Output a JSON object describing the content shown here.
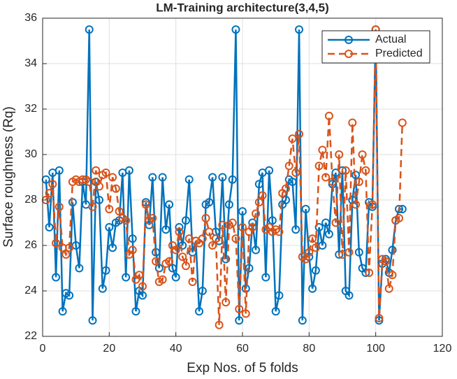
{
  "chart_data": {
    "type": "line",
    "title": "LM-Training architecture(3,4,5)",
    "x_label": "Exp Nos. of 5 folds",
    "y_label": "Surface roughness (Rq)",
    "x": [
      1,
      2,
      3,
      4,
      5,
      6,
      7,
      8,
      9,
      10,
      11,
      12,
      13,
      14,
      15,
      16,
      17,
      18,
      19,
      20,
      21,
      22,
      23,
      24,
      25,
      26,
      27,
      28,
      29,
      30,
      31,
      32,
      33,
      34,
      35,
      36,
      37,
      38,
      39,
      40,
      41,
      42,
      43,
      44,
      45,
      46,
      47,
      48,
      49,
      50,
      51,
      52,
      53,
      54,
      55,
      56,
      57,
      58,
      59,
      60,
      61,
      62,
      63,
      64,
      65,
      66,
      67,
      68,
      69,
      70,
      71,
      72,
      73,
      74,
      75,
      76,
      77,
      78,
      79,
      80,
      81,
      82,
      83,
      84,
      85,
      86,
      87,
      88,
      89,
      90,
      91,
      92,
      93,
      94,
      95,
      96,
      97,
      98,
      99,
      100,
      101,
      102,
      103,
      104,
      105,
      106,
      107,
      108
    ],
    "series": [
      {
        "name": "Actual",
        "color": "#0072bd",
        "dashed": false,
        "values": [
          28.9,
          26.8,
          29.2,
          24.6,
          29.3,
          23.1,
          23.9,
          23.8,
          27.9,
          26.0,
          25.0,
          28.8,
          27.8,
          35.5,
          22.7,
          28.8,
          28.0,
          24.1,
          24.9,
          26.8,
          25.9,
          27.0,
          27.1,
          29.2,
          24.6,
          29.3,
          26.3,
          23.1,
          24.0,
          23.8,
          27.9,
          26.9,
          29.0,
          25.7,
          25.0,
          29.0,
          26.7,
          27.8,
          25.0,
          24.6,
          26.8,
          26.0,
          27.1,
          28.9,
          25.7,
          26.2,
          23.1,
          24.0,
          27.8,
          27.9,
          29.0,
          26.6,
          26.2,
          29.0,
          25.4,
          27.8,
          28.9,
          35.5,
          22.7,
          27.5,
          24.1,
          25.0,
          27.0,
          25.8,
          28.7,
          29.2,
          24.6,
          29.3,
          27.1,
          23.1,
          23.8,
          27.8,
          28.0,
          28.9,
          28.8,
          26.7,
          35.5,
          22.7,
          27.6,
          25.5,
          24.1,
          24.9,
          26.8,
          26.0,
          27.0,
          26.5,
          28.7,
          29.2,
          25.6,
          29.3,
          24.0,
          23.8,
          28.0,
          29.1,
          25.7,
          25.0,
          24.8,
          27.9,
          27.7,
          35.5,
          22.7,
          25.2,
          25.4,
          24.8,
          25.8,
          27.1,
          27.6,
          27.6
        ]
      },
      {
        "name": "Predicted",
        "color": "#d95319",
        "dashed": true,
        "values": [
          28.0,
          28.3,
          28.7,
          26.1,
          27.7,
          25.9,
          25.6,
          25.9,
          28.8,
          28.9,
          28.8,
          28.9,
          28.9,
          28.8,
          27.7,
          29.3,
          28.6,
          29.1,
          29.2,
          27.6,
          29.0,
          28.5,
          27.5,
          27.2,
          27.1,
          25.6,
          25.8,
          24.5,
          24.7,
          24.2,
          27.8,
          27.1,
          27.2,
          25.3,
          24.4,
          24.5,
          25.2,
          25.3,
          26.0,
          25.8,
          26.6,
          25.5,
          25.1,
          26.3,
          24.4,
          26.2,
          26.1,
          26.3,
          27.2,
          26.6,
          26.0,
          26.3,
          22.5,
          26.9,
          23.5,
          26.9,
          27.0,
          26.3,
          23.2,
          26.8,
          23.0,
          26.6,
          26.8,
          27.4,
          27.9,
          28.2,
          26.7,
          26.8,
          26.6,
          26.7,
          26.6,
          28.3,
          28.5,
          29.5,
          30.7,
          29.2,
          30.9,
          25.5,
          25.4,
          25.7,
          26.3,
          25.9,
          29.5,
          30.2,
          29.0,
          31.7,
          28.8,
          27.0,
          30.0,
          25.6,
          29.3,
          25.7,
          31.4,
          27.8,
          28.8,
          30.0,
          29.3,
          24.8,
          27.8,
          35.5,
          22.8,
          25.4,
          25.3,
          24.1,
          24.7,
          27.1,
          27.2,
          31.4
        ]
      }
    ],
    "xlim": [
      0,
      120
    ],
    "xticks": [
      0,
      20,
      40,
      60,
      80,
      100,
      120
    ],
    "ylim": [
      22,
      36
    ],
    "yticks": [
      22,
      24,
      26,
      28,
      30,
      32,
      34,
      36
    ],
    "grid": true,
    "legend": "northeast"
  }
}
